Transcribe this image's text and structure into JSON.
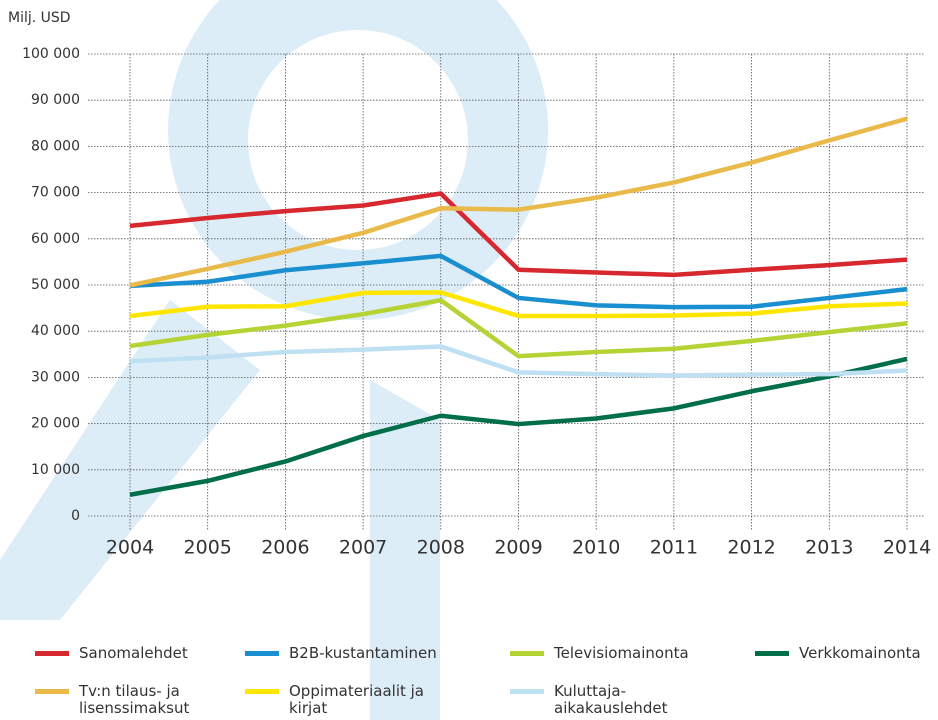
{
  "chart_data": {
    "type": "line",
    "y_label": "Milj. USD",
    "categories": [
      "2004",
      "2005",
      "2006",
      "2007",
      "2008",
      "2009",
      "2010",
      "2011",
      "2012",
      "2013",
      "2014"
    ],
    "ylim": [
      0,
      100000
    ],
    "yticks": [
      0,
      {
        "value": 10000,
        "label": "10 000"
      },
      {
        "value": 20000,
        "label": "20 000"
      },
      {
        "value": 30000,
        "label": "30 000"
      },
      {
        "value": 40000,
        "label": "40 000"
      },
      {
        "value": 50000,
        "label": "50 000"
      },
      {
        "value": 60000,
        "label": "60 000"
      },
      {
        "value": 70000,
        "label": "70 000"
      },
      {
        "value": 80000,
        "label": "80 000"
      },
      {
        "value": 90000,
        "label": "90 000"
      },
      {
        "value": 100000,
        "label": "100 000"
      }
    ],
    "grid": true,
    "series": [
      {
        "name": "Sanomalehdet",
        "color": "#d7282f",
        "values": [
          62800,
          64500,
          66000,
          67200,
          69800,
          53300,
          52700,
          52200,
          53300,
          54300,
          55500
        ]
      },
      {
        "name": "B2B-kustantaminen",
        "color": "#1a8fd0",
        "values": [
          49800,
          50700,
          53200,
          54700,
          56300,
          47200,
          45600,
          45200,
          45300,
          47200,
          49100
        ]
      },
      {
        "name": "Televisiomainonta",
        "color": "#b5d334",
        "values": [
          36800,
          39200,
          41200,
          43700,
          46700,
          34600,
          35500,
          36200,
          37900,
          39800,
          41700
        ]
      },
      {
        "name": "Verkkomainonta",
        "color": "#006e4a",
        "values": [
          4600,
          7600,
          11800,
          17300,
          21700,
          19900,
          21100,
          23300,
          27000,
          30200,
          34000
        ]
      },
      {
        "name": "Tv:n tilaus- ja lisenssimaksut",
        "color": "#e9b94a",
        "values": [
          49900,
          53500,
          57200,
          61300,
          66600,
          66300,
          68900,
          72200,
          76500,
          81300,
          86000
        ]
      },
      {
        "name": "Oppimateriaalit ja kirjat",
        "color": "#ffe600",
        "values": [
          43300,
          45300,
          45400,
          48300,
          48400,
          43300,
          43300,
          43400,
          43800,
          45400,
          46000
        ]
      },
      {
        "name": "Kuluttaja-aikakauslehdet",
        "color": "#bfe0f2",
        "values": [
          33500,
          34300,
          35500,
          36000,
          36700,
          31100,
          30700,
          30400,
          30600,
          30700,
          31500
        ]
      }
    ]
  }
}
